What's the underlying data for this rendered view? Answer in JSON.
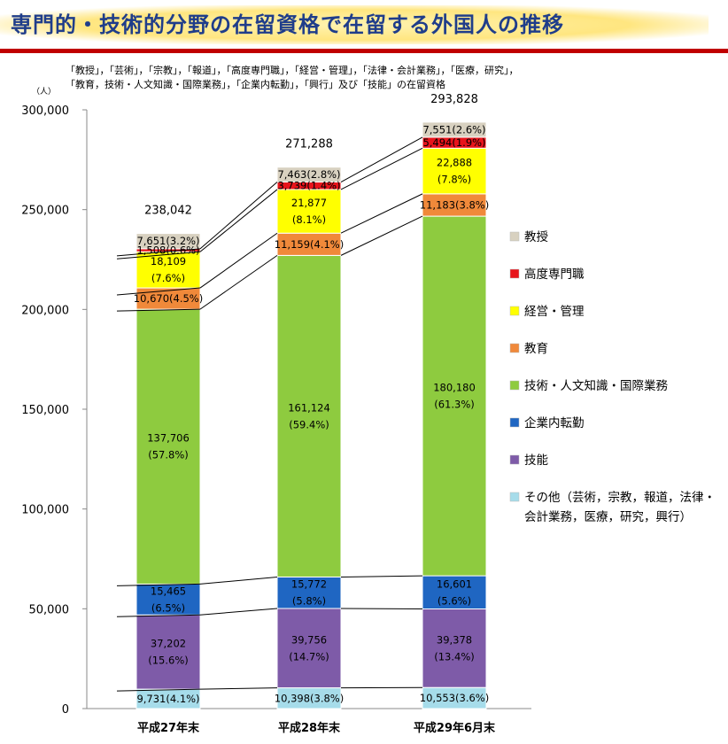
{
  "title": "専門的・技術的分野の在留資格で在留する外国人の推移",
  "subtitle_lines": [
    "「教授」，「芸術」，「宗教」，「報道」，「高度専門職」，「経営・管理」，「法律・会計業務」，「医療，研究」，",
    "「教育，技術・人文知識・国際業務」，「企業内転勤」，「興行」及び「技能」の在留資格"
  ],
  "unit": "（人）",
  "chart_data": {
    "type": "bar",
    "stacked": true,
    "categories": [
      "平成27年末",
      "平成28年末",
      "平成29年6月末"
    ],
    "ylim": [
      0,
      300000
    ],
    "yticks": [
      "0",
      "50,000",
      "100,000",
      "150,000",
      "200,000",
      "250,000",
      "300,000"
    ],
    "ytick_values": [
      0,
      50000,
      100000,
      150000,
      200000,
      250000,
      300000
    ],
    "totals": [
      238042,
      271288,
      293828
    ],
    "total_labels": [
      "238,042",
      "271,288",
      "293,828"
    ],
    "series": [
      {
        "name": "その他（芸術，宗教，報道，法律・会計業務，医療，研究，興行）",
        "color": "#a6dcea",
        "values": [
          9731,
          10398,
          10553
        ],
        "labels": [
          [
            "9,731(4.1%)"
          ],
          [
            "10,398(3.8%)"
          ],
          [
            "10,553(3.6%)"
          ]
        ]
      },
      {
        "name": "技能",
        "color": "#7e5ba8",
        "values": [
          37202,
          39756,
          39378
        ],
        "labels": [
          [
            "37,202",
            "(15.6%)"
          ],
          [
            "39,756",
            "(14.7%)"
          ],
          [
            "39,378",
            "(13.4%)"
          ]
        ]
      },
      {
        "name": "企業内転勤",
        "color": "#1f66c2",
        "values": [
          15465,
          15772,
          16601
        ],
        "labels": [
          [
            "15,465",
            "(6.5%)"
          ],
          [
            "15,772",
            "(5.8%)"
          ],
          [
            "16,601",
            "(5.6%)"
          ]
        ]
      },
      {
        "name": "技術・人文知識・国際業務",
        "color": "#8ecb3f",
        "values": [
          137706,
          161124,
          180180
        ],
        "labels": [
          [
            "137,706",
            "(57.8%)"
          ],
          [
            "161,124",
            "(59.4%)"
          ],
          [
            "180,180",
            "(61.3%)"
          ]
        ]
      },
      {
        "name": "教育",
        "color": "#f0893a",
        "values": [
          10670,
          11159,
          11183
        ],
        "labels": [
          [
            "10,670(4.5%)"
          ],
          [
            "11,159(4.1%)"
          ],
          [
            "11,183(3.8%)"
          ]
        ]
      },
      {
        "name": "経営・管理",
        "color": "#ffff00",
        "values": [
          18109,
          21877,
          22888
        ],
        "labels": [
          [
            "18,109",
            "(7.6%)"
          ],
          [
            "21,877",
            "(8.1%)"
          ],
          [
            "22,888",
            "(7.8%)"
          ]
        ]
      },
      {
        "name": "高度専門職",
        "color": "#e8141b",
        "values": [
          1508,
          3739,
          5494
        ],
        "labels": [
          [
            "1,508(0.6%)"
          ],
          [
            "3,739(1.4%)"
          ],
          [
            "5,494(1.9%)"
          ]
        ]
      },
      {
        "name": "教授",
        "color": "#d8d1c0",
        "values": [
          7651,
          7463,
          7551
        ],
        "labels": [
          [
            "7,651(3.2%)"
          ],
          [
            "7,463(2.8%)"
          ],
          [
            "7,551(2.6%)"
          ]
        ]
      }
    ],
    "legend_order": [
      "教授",
      "高度専門職",
      "経営・管理",
      "教育",
      "技術・人文知識・国際業務",
      "企業内転勤",
      "技能",
      "その他（芸術，宗教，報道，法律・会計業務，医療，研究，興行）"
    ],
    "legend_lines": {
      "その他（芸術，宗教，報道，法律・会計業務，医療，研究，興行）": [
        "その他（芸術，宗教，報道，法律・",
        "会計業務，医療，研究，興行）"
      ]
    },
    "legend_position": "right",
    "grid": false
  }
}
